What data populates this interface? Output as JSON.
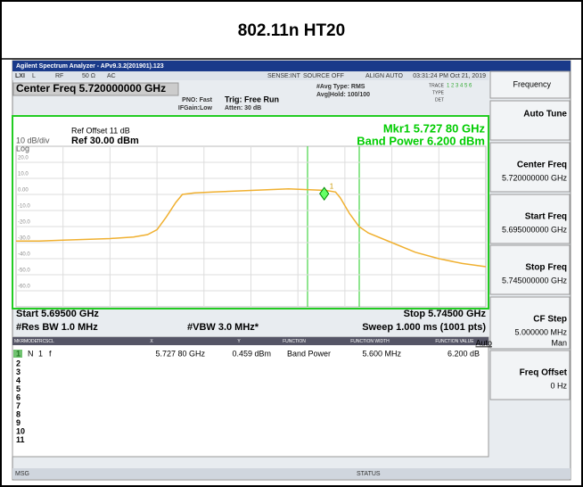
{
  "title": "802.11n HT20",
  "window": {
    "app_title": "Agilent Spectrum Analyzer - APv9.3.2(201901).123",
    "toolbar": [
      "LXI",
      "L",
      "RF",
      "50 Ω",
      "AC",
      "SENSE:INT",
      "SOURCE OFF",
      "ALIGN AUTO",
      "03:31:24 PM Oct 21, 2019"
    ],
    "center_freq": "Center Freq 5.720000000 GHz",
    "pno": "PNO: Fast",
    "ifgain": "IFGain:Low",
    "trig": "Trig: Free Run",
    "atten": "Atten: 30 dB",
    "avg_type": "#Avg Type: RMS",
    "avg_hold": "Avg|Hold: 100/100",
    "trace_label": "TRACE",
    "trace_nums": "1 2 3 4 5 6",
    "type_label": "TYPE",
    "det_label": "DET",
    "msg": "MSG",
    "status": "STATUS"
  },
  "chart": {
    "ref_offset": "Ref Offset 11 dB",
    "scale": "10 dB/div",
    "ref_level": "Ref 30.00 dBm",
    "log": "Log",
    "mkr_readout": "Mkr1 5.727 80 GHz",
    "band_power": "Band Power 6.200 dBm",
    "start": "Start 5.69500 GHz",
    "stop": "Stop 5.74500 GHz",
    "rbw": "#Res BW 1.0 MHz",
    "vbw": "#VBW 3.0 MHz*",
    "sweep": "Sweep  1.000 ms (1001 pts)",
    "xlim": [
      5.695,
      5.745
    ],
    "ylim": [
      -70,
      30
    ],
    "yticks": [
      {
        "value": 20,
        "label": "20.0"
      },
      {
        "value": 10,
        "label": "10.0"
      },
      {
        "value": 0,
        "label": "0.00"
      },
      {
        "value": -10,
        "label": "-10.0"
      },
      {
        "value": -20,
        "label": "-20.0"
      },
      {
        "value": -30,
        "label": "-30.0"
      },
      {
        "value": -40,
        "label": "-40.0"
      },
      {
        "value": -50,
        "label": "-50.0"
      },
      {
        "value": -60,
        "label": "-60.0"
      }
    ],
    "trace": {
      "color": "#f0b030",
      "x": [
        5.695,
        5.6975,
        5.7,
        5.7025,
        5.705,
        5.7075,
        5.709,
        5.71,
        5.711,
        5.712,
        5.7127,
        5.714,
        5.716,
        5.718,
        5.72,
        5.722,
        5.724,
        5.726,
        5.728,
        5.729,
        5.7295,
        5.7305,
        5.7315,
        5.7325,
        5.735,
        5.7375,
        5.74,
        5.7425,
        5.745
      ],
      "y": [
        -29,
        -29,
        -28.5,
        -28,
        -27.5,
        -26.5,
        -25,
        -22,
        -14,
        -5,
        0,
        1,
        1.5,
        2,
        2.5,
        3,
        3.5,
        3,
        2.5,
        1.5,
        -2,
        -12,
        -20,
        -24,
        -30,
        -36,
        -40,
        -43,
        -45
      ]
    },
    "marker": {
      "x": 5.7278,
      "y": 0.459,
      "label": "1"
    }
  },
  "softkeys": [
    {
      "label": "Frequency"
    },
    {
      "label": "Auto Tune"
    },
    {
      "label": "Center Freq",
      "value": "5.720000000 GHz"
    },
    {
      "label": "Start Freq",
      "value": "5.695000000 GHz"
    },
    {
      "label": "Stop Freq",
      "value": "5.745000000 GHz"
    },
    {
      "label": "CF Step",
      "value": "5.000000 MHz",
      "options": [
        "Auto",
        "Man"
      ]
    },
    {
      "label": "Freq Offset",
      "value": "0 Hz"
    }
  ],
  "table": {
    "headers": [
      "MKR",
      "MODE",
      "TRC",
      "SCL",
      "X",
      "Y",
      "FUNCTION",
      "FUNCTION WIDTH",
      "FUNCTION VALUE"
    ],
    "rows": [
      [
        "1",
        "N",
        "1",
        "f",
        "5.727 80 GHz",
        "0.459 dBm",
        "Band Power",
        "5.600 MHz",
        "6.200 dB"
      ]
    ],
    "empty_rows": [
      "2",
      "3",
      "4",
      "5",
      "6",
      "7",
      "8",
      "9",
      "10",
      "11"
    ]
  }
}
